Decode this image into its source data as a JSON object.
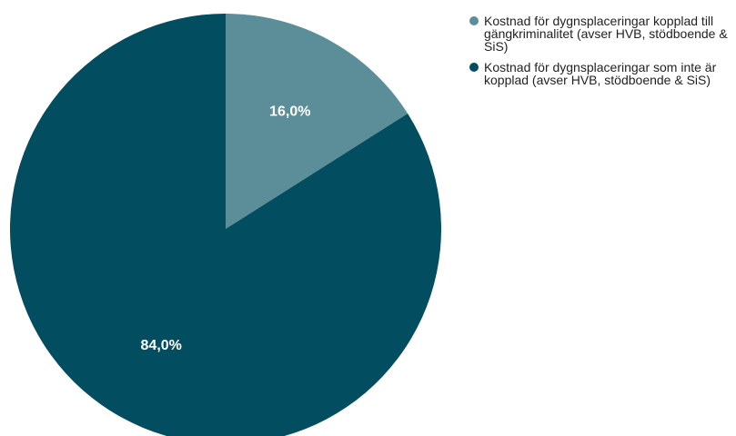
{
  "chart_data": {
    "type": "pie",
    "categories": [
      "Kostnad för dygnsplaceringar kopplad till gängkriminalitet (avser HVB, stödboende & SiS)",
      "Kostnad för dygnsplaceringar som inte är kopplad (avser HVB, stödboende & SiS)"
    ],
    "values": [
      16.0,
      84.0
    ],
    "value_labels": [
      "16,0%",
      "84,0%"
    ],
    "colors": [
      "#5b8e98",
      "#024d5f"
    ],
    "legend_position": "top-right"
  }
}
